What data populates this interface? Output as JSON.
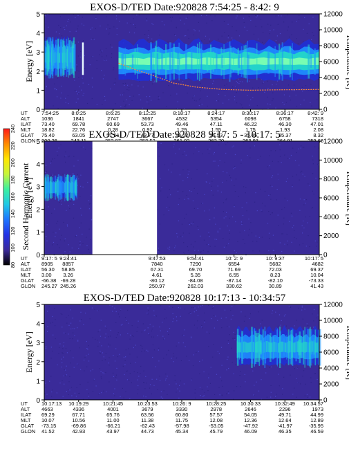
{
  "colors": {
    "background": "#3a2b99",
    "speckle": "#4a45c8",
    "weak_band": "#1f2fd8",
    "mid_band": "#1e90ff",
    "strong_band": "#24d7c8",
    "peak_band": "#7dffb0",
    "temperature_trace": "#ff8a3a",
    "gap": "#ffffff"
  },
  "colorbar": {
    "label": "Second Harmonic Current",
    "ticks": [
      "80",
      "100",
      "120",
      "140",
      "160",
      "180",
      "200",
      "220",
      "240"
    ],
    "stops": [
      "#000000",
      "#3b2a9c",
      "#2233e6",
      "#1e74ff",
      "#1fc8e6",
      "#3cf0a0",
      "#c6f53a",
      "#ffe600",
      "#ff8a00",
      "#ff1a1a"
    ]
  },
  "row_labels": [
    "UT",
    "ALT",
    "ILAT",
    "MLT",
    "GLAT",
    "GLON"
  ],
  "chart_data": [
    {
      "type": "heatmap",
      "title": "EXOS-D/TED   Date:920828   7:54:25 - 8:42: 9",
      "ylabel": "Energy [eV]",
      "y2label": "Temperature [K]",
      "ylim": [
        0,
        5
      ],
      "y2lim": [
        0,
        12000
      ],
      "yticks": [
        "0",
        "1",
        "2",
        "3",
        "4",
        "5"
      ],
      "y2ticks": [
        "0",
        "2000",
        "4000",
        "6000",
        "8000",
        "10000",
        "12000"
      ],
      "gap": null,
      "intense_band": {
        "x_start": 0.27,
        "x_end": 1.0,
        "center_eV": 2.5,
        "halfwidth_eV": 0.55,
        "level": 1.0
      },
      "early_band": {
        "x_start": 0.0,
        "x_end": 0.11,
        "center_eV": 2.7,
        "halfwidth_eV": 0.55,
        "level": 0.7
      },
      "spike_x": 0.14,
      "temperature_trace": {
        "x": [
          0.27,
          0.33,
          0.4,
          0.47,
          0.55,
          0.65,
          0.75,
          0.85,
          1.0
        ],
        "y": [
          5800,
          5000,
          4200,
          3300,
          2800,
          2500,
          2400,
          2450,
          2500
        ]
      },
      "table": [
        {
          "x": 0.0,
          "cols": [
            "7:54:25",
            "1036",
            "73.40",
            "18.82",
            "75.40",
            "200.26"
          ]
        },
        {
          "x": 0.125,
          "cols": [
            "8:0:25",
            "1841",
            "69.78",
            "22.76",
            "63.05",
            "243.11"
          ]
        },
        {
          "x": 0.25,
          "cols": [
            "8:6:25",
            "2747",
            "60.69",
            "0.28",
            "51.51",
            "253.97"
          ]
        },
        {
          "x": 0.375,
          "cols": [
            "8:12:25",
            "3667",
            "53.73",
            "0.92",
            "43.77",
            "258.53"
          ]
        },
        {
          "x": 0.5,
          "cols": [
            "8:18:17",
            "4532",
            "49.46",
            "1.29",
            "39.12",
            "261.02"
          ]
        },
        {
          "x": 0.625,
          "cols": [
            "8:24:17",
            "5354",
            "47.11",
            "1.55",
            "36.53",
            "262.70"
          ]
        },
        {
          "x": 0.75,
          "cols": [
            "8:30:17",
            "6098",
            "46.22",
            "1.75",
            "35.45",
            "263.93"
          ]
        },
        {
          "x": 0.875,
          "cols": [
            "8:36:17",
            "6758",
            "46.30",
            "1.93",
            "35.37",
            "264.91"
          ]
        },
        {
          "x": 1.0,
          "cols": [
            "8:42: 9",
            "7318",
            "47.01",
            "2.08",
            "8.32",
            "259.68"
          ]
        }
      ]
    },
    {
      "type": "heatmap",
      "title": "EXOS-D/TED   Date:920828   9:17: 5 - 10:17: 5",
      "ylabel": "Energy [eV]",
      "y2label": "Temperature [K]",
      "ylim": [
        0,
        5
      ],
      "y2lim": [
        0,
        12000
      ],
      "yticks": [
        "0",
        "1",
        "2",
        "3",
        "4",
        "5"
      ],
      "y2ticks": [
        "0",
        "2000",
        "4000",
        "6000",
        "8000",
        "10000",
        "12000"
      ],
      "gap": {
        "x_start": 0.175,
        "x_end": 0.41
      },
      "intense_band": null,
      "early_band": {
        "x_start": 0.0,
        "x_end": 0.12,
        "center_eV": 2.95,
        "halfwidth_eV": 0.3,
        "level": 0.55
      },
      "spike_x": null,
      "temperature_trace": null,
      "table": [
        {
          "x": 0.0,
          "cols": [
            "9:17: 5",
            "8905",
            "56.30",
            "3.00",
            "-66.38",
            "245.27"
          ]
        },
        {
          "x": 0.087,
          "cols": [
            "9:24:41",
            "8857",
            "58.85",
            "3.26",
            "-69.28",
            "245.26"
          ]
        },
        {
          "x": 0.41,
          "cols": [
            "9:47:53",
            "7840",
            "67.31",
            "4.61",
            "-80.12",
            "250.97"
          ]
        },
        {
          "x": 0.55,
          "cols": [
            "9:54:41",
            "7290",
            "69.70",
            "5.35",
            "-84.08",
            "262.03"
          ]
        },
        {
          "x": 0.69,
          "cols": [
            "10: 2: 9",
            "6554",
            "71.69",
            "6.55",
            "-87.14",
            "330.62"
          ]
        },
        {
          "x": 0.84,
          "cols": [
            "10: 9:37",
            "5682",
            "72.03",
            "8.23",
            "-82.10",
            "30.89"
          ]
        },
        {
          "x": 1.0,
          "cols": [
            "10:17: 5",
            "4682",
            "69.37",
            "10.04",
            "-73.33",
            "41.43"
          ]
        }
      ]
    },
    {
      "type": "heatmap",
      "title": "EXOS-D/TED   Date:920828   10:17:13 - 10:34:57",
      "ylabel": "Energy [eV]",
      "y2label": "Temperature [K]",
      "ylim": [
        0,
        5
      ],
      "y2lim": [
        0,
        12000
      ],
      "yticks": [
        "0",
        "1",
        "2",
        "3",
        "4",
        "5"
      ],
      "y2ticks": [
        "0",
        "2000",
        "4000",
        "6000",
        "8000",
        "10000",
        "12000"
      ],
      "gap": null,
      "intense_band": {
        "x_start": 0.7,
        "x_end": 1.0,
        "center_eV": 2.75,
        "halfwidth_eV": 0.55,
        "level": 0.75
      },
      "early_band": null,
      "spike_x": null,
      "temperature_trace": null,
      "table": [
        {
          "x": 0.0,
          "cols": [
            "10:17:13",
            "4663",
            "69.29",
            "10.07",
            "-73.15",
            "41.52"
          ]
        },
        {
          "x": 0.125,
          "cols": [
            "10:19:29",
            "4336",
            "67.71",
            "10.56",
            "-69.86",
            "42.93"
          ]
        },
        {
          "x": 0.25,
          "cols": [
            "10:21:45",
            "4001",
            "65.76",
            "11.00",
            "-66.21",
            "43.97"
          ]
        },
        {
          "x": 0.375,
          "cols": [
            "10:23:53",
            "3679",
            "63.56",
            "11.38",
            "-62.43",
            "44.73"
          ]
        },
        {
          "x": 0.5,
          "cols": [
            "10:26: 9",
            "3330",
            "60.80",
            "11.75",
            "-57.98",
            "45.34"
          ]
        },
        {
          "x": 0.625,
          "cols": [
            "10:28:25",
            "2978",
            "57.57",
            "12.08",
            "-53.05",
            "45.79"
          ]
        },
        {
          "x": 0.75,
          "cols": [
            "10:30:33",
            "2646",
            "54.05",
            "12.36",
            "-47.92",
            "46.09"
          ]
        },
        {
          "x": 0.875,
          "cols": [
            "10:32:49",
            "2296",
            "49.71",
            "12.64",
            "-41.97",
            "46.35"
          ]
        },
        {
          "x": 1.0,
          "cols": [
            "10:34:57",
            "1973",
            "44.99",
            "12.89",
            "-35.95",
            "46.59"
          ]
        }
      ]
    }
  ]
}
